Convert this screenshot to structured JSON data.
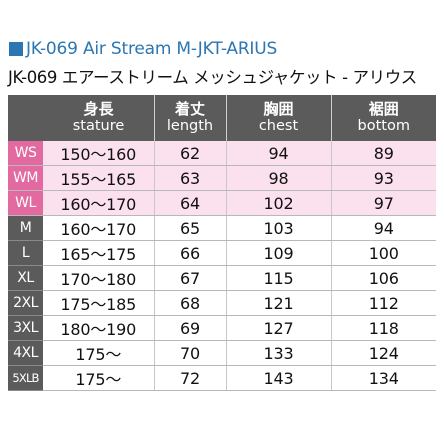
{
  "title": {
    "en": "JK-069 Air Stream M-JKT-ARIUS",
    "jp": "JK-069 エアーストリーム メッシュジャケット - アリウス"
  },
  "table": {
    "headers": [
      {
        "jp": "",
        "en": ""
      },
      {
        "jp": "身長",
        "en": "stature"
      },
      {
        "jp": "着丈",
        "en": "length"
      },
      {
        "jp": "胸囲",
        "en": "chest"
      },
      {
        "jp": "裾囲",
        "en": "bottom"
      }
    ],
    "rows": [
      {
        "size": "WS",
        "stature": "150〜160",
        "length": "62",
        "chest": "94",
        "bottom": "89"
      },
      {
        "size": "WM",
        "stature": "155〜165",
        "length": "63",
        "chest": "98",
        "bottom": "93"
      },
      {
        "size": "WL",
        "stature": "160〜170",
        "length": "64",
        "chest": "102",
        "bottom": "97"
      },
      {
        "size": "M",
        "stature": "160〜170",
        "length": "65",
        "chest": "103",
        "bottom": "94"
      },
      {
        "size": "L",
        "stature": "165〜175",
        "length": "66",
        "chest": "109",
        "bottom": "100"
      },
      {
        "size": "XL",
        "stature": "170〜180",
        "length": "67",
        "chest": "115",
        "bottom": "106"
      },
      {
        "size": "2XL",
        "stature": "175〜185",
        "length": "68",
        "chest": "121",
        "bottom": "112"
      },
      {
        "size": "3XL",
        "stature": "180〜190",
        "length": "69",
        "chest": "127",
        "bottom": "118"
      },
      {
        "size": "4XL",
        "stature": "175〜",
        "length": "70",
        "chest": "133",
        "bottom": "124"
      },
      {
        "size": "5XLB",
        "stature": "175〜",
        "length": "72",
        "chest": "143",
        "bottom": "134"
      }
    ]
  },
  "colors": {
    "title_blue": "#2b76b3",
    "header_gray": "#5b5b5b",
    "women_pink": "#e26aa0",
    "women_row_bg": "#fbe1ee"
  }
}
